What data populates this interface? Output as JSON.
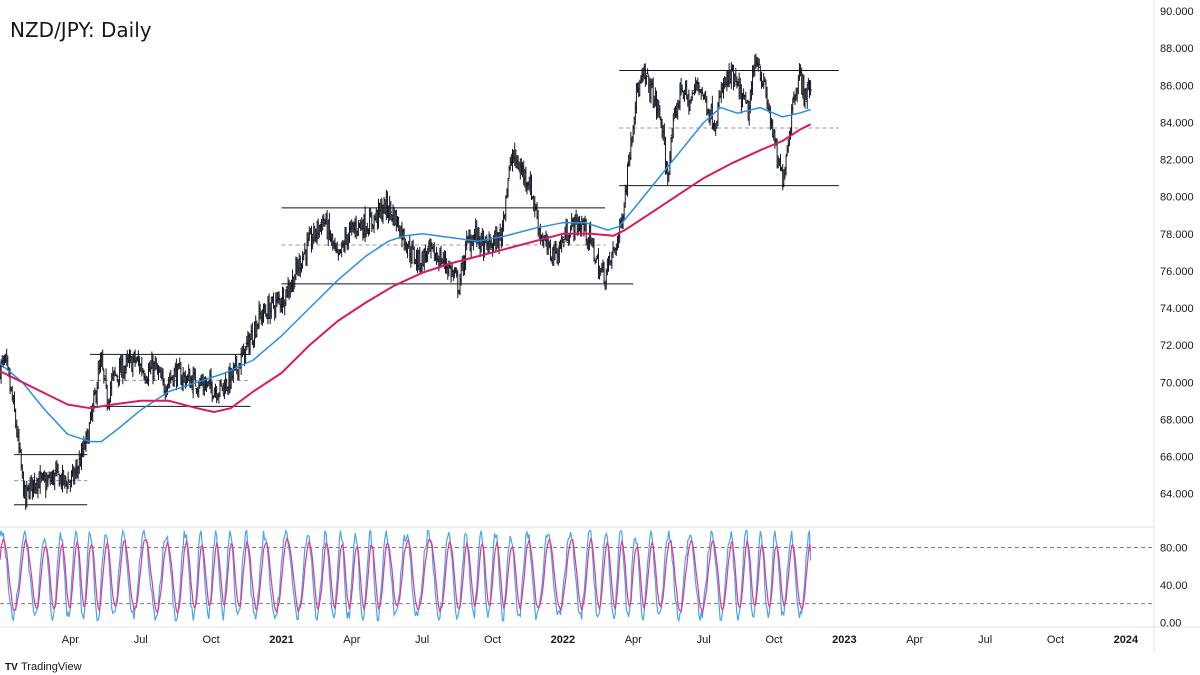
{
  "title": "NZD/JPY: Daily",
  "brand": {
    "name": "TradingView",
    "logo": "TV"
  },
  "chart_data": {
    "type": "candlestick",
    "instrument": "NZD/JPY",
    "timeframe": "Daily",
    "price_axis": {
      "ticks": [
        "90.000",
        "88.000",
        "86.000",
        "84.000",
        "82.000",
        "80.000",
        "78.000",
        "76.000",
        "74.000",
        "72.000",
        "70.000",
        "68.000",
        "66.000",
        "64.000"
      ],
      "range": [
        62.2,
        90.6
      ]
    },
    "time_axis": {
      "ticks": [
        {
          "label": "Apr",
          "t": 2020.25,
          "bold": false
        },
        {
          "label": "Jul",
          "t": 2020.5,
          "bold": false
        },
        {
          "label": "Oct",
          "t": 2020.75,
          "bold": false
        },
        {
          "label": "2021",
          "t": 2021.0,
          "bold": true
        },
        {
          "label": "Apr",
          "t": 2021.25,
          "bold": false
        },
        {
          "label": "Jul",
          "t": 2021.5,
          "bold": false
        },
        {
          "label": "Oct",
          "t": 2021.75,
          "bold": false
        },
        {
          "label": "2022",
          "t": 2022.0,
          "bold": true
        },
        {
          "label": "Apr",
          "t": 2022.25,
          "bold": false
        },
        {
          "label": "Jul",
          "t": 2022.5,
          "bold": false
        },
        {
          "label": "Oct",
          "t": 2022.75,
          "bold": false
        },
        {
          "label": "2023",
          "t": 2023.0,
          "bold": true
        },
        {
          "label": "Apr",
          "t": 2023.25,
          "bold": false
        },
        {
          "label": "Jul",
          "t": 2023.5,
          "bold": false
        },
        {
          "label": "Oct",
          "t": 2023.75,
          "bold": false
        },
        {
          "label": "2024",
          "t": 2024.0,
          "bold": true
        }
      ],
      "range": [
        2020.0,
        2024.1
      ]
    },
    "price_path": [
      [
        2020.0,
        70.8
      ],
      [
        2020.02,
        71.0
      ],
      [
        2020.05,
        68.5
      ],
      [
        2020.07,
        66.0
      ],
      [
        2020.09,
        63.5
      ],
      [
        2020.1,
        64.2
      ],
      [
        2020.13,
        64.8
      ],
      [
        2020.16,
        64.5
      ],
      [
        2020.2,
        65.0
      ],
      [
        2020.23,
        64.6
      ],
      [
        2020.26,
        64.8
      ],
      [
        2020.29,
        66.0
      ],
      [
        2020.31,
        67.0
      ],
      [
        2020.33,
        68.5
      ],
      [
        2020.35,
        70.5
      ],
      [
        2020.36,
        71.0
      ],
      [
        2020.38,
        69.0
      ],
      [
        2020.4,
        70.2
      ],
      [
        2020.44,
        70.8
      ],
      [
        2020.48,
        71.2
      ],
      [
        2020.52,
        70.5
      ],
      [
        2020.55,
        70.8
      ],
      [
        2020.58,
        69.8
      ],
      [
        2020.62,
        70.5
      ],
      [
        2020.66,
        70.2
      ],
      [
        2020.7,
        70.0
      ],
      [
        2020.74,
        69.8
      ],
      [
        2020.78,
        69.6
      ],
      [
        2020.82,
        70.2
      ],
      [
        2020.86,
        71.3
      ],
      [
        2020.88,
        72.0
      ],
      [
        2020.92,
        73.5
      ],
      [
        2020.96,
        74.0
      ],
      [
        2021.0,
        74.5
      ],
      [
        2021.04,
        75.5
      ],
      [
        2021.08,
        77.0
      ],
      [
        2021.12,
        78.0
      ],
      [
        2021.15,
        78.8
      ],
      [
        2021.18,
        77.5
      ],
      [
        2021.2,
        76.5
      ],
      [
        2021.23,
        77.8
      ],
      [
        2021.27,
        78.5
      ],
      [
        2021.31,
        78.5
      ],
      [
        2021.34,
        79.0
      ],
      [
        2021.37,
        79.5
      ],
      [
        2021.4,
        79.0
      ],
      [
        2021.43,
        78.0
      ],
      [
        2021.46,
        77.0
      ],
      [
        2021.49,
        76.5
      ],
      [
        2021.52,
        77.0
      ],
      [
        2021.55,
        76.8
      ],
      [
        2021.58,
        76.5
      ],
      [
        2021.61,
        75.8
      ],
      [
        2021.63,
        75.2
      ],
      [
        2021.66,
        77.5
      ],
      [
        2021.69,
        78.0
      ],
      [
        2021.72,
        77.2
      ],
      [
        2021.75,
        77.5
      ],
      [
        2021.78,
        77.8
      ],
      [
        2021.8,
        80.5
      ],
      [
        2021.82,
        82.2
      ],
      [
        2021.85,
        81.5
      ],
      [
        2021.88,
        80.8
      ],
      [
        2021.9,
        79.5
      ],
      [
        2021.92,
        78.0
      ],
      [
        2021.95,
        77.0
      ],
      [
        2021.98,
        77.0
      ],
      [
        2022.01,
        78.0
      ],
      [
        2022.04,
        78.5
      ],
      [
        2022.07,
        78.5
      ],
      [
        2022.1,
        77.5
      ],
      [
        2022.13,
        76.0
      ],
      [
        2022.15,
        75.8
      ],
      [
        2022.18,
        77.0
      ],
      [
        2022.2,
        78.0
      ],
      [
        2022.22,
        80.0
      ],
      [
        2022.24,
        83.0
      ],
      [
        2022.26,
        85.5
      ],
      [
        2022.29,
        86.5
      ],
      [
        2022.32,
        85.5
      ],
      [
        2022.35,
        84.0
      ],
      [
        2022.37,
        81.0
      ],
      [
        2022.39,
        83.5
      ],
      [
        2022.42,
        86.0
      ],
      [
        2022.45,
        85.0
      ],
      [
        2022.48,
        86.2
      ],
      [
        2022.51,
        85.0
      ],
      [
        2022.54,
        84.0
      ],
      [
        2022.57,
        86.0
      ],
      [
        2022.6,
        86.5
      ],
      [
        2022.63,
        85.5
      ],
      [
        2022.66,
        84.5
      ],
      [
        2022.68,
        87.0
      ],
      [
        2022.69,
        87.6
      ],
      [
        2022.72,
        85.5
      ],
      [
        2022.74,
        84.0
      ],
      [
        2022.76,
        82.0
      ],
      [
        2022.78,
        81.0
      ],
      [
        2022.8,
        83.0
      ],
      [
        2022.82,
        85.5
      ],
      [
        2022.84,
        86.5
      ],
      [
        2022.86,
        85.5
      ],
      [
        2022.88,
        86.0
      ]
    ],
    "moving_averages": [
      {
        "color": "#2a8ee6",
        "points": [
          [
            2020.0,
            71.0
          ],
          [
            2020.08,
            70.0
          ],
          [
            2020.16,
            68.5
          ],
          [
            2020.24,
            67.2
          ],
          [
            2020.32,
            66.8
          ],
          [
            2020.36,
            66.8
          ],
          [
            2020.42,
            67.5
          ],
          [
            2020.5,
            68.5
          ],
          [
            2020.6,
            69.5
          ],
          [
            2020.7,
            70.0
          ],
          [
            2020.8,
            70.5
          ],
          [
            2020.9,
            71.2
          ],
          [
            2021.0,
            72.5
          ],
          [
            2021.1,
            74.0
          ],
          [
            2021.2,
            75.5
          ],
          [
            2021.3,
            76.8
          ],
          [
            2021.38,
            77.6
          ],
          [
            2021.44,
            77.9
          ],
          [
            2021.5,
            78.0
          ],
          [
            2021.6,
            77.8
          ],
          [
            2021.7,
            77.6
          ],
          [
            2021.8,
            77.9
          ],
          [
            2021.9,
            78.3
          ],
          [
            2022.0,
            78.6
          ],
          [
            2022.08,
            78.6
          ],
          [
            2022.16,
            78.2
          ],
          [
            2022.2,
            78.4
          ],
          [
            2022.26,
            79.5
          ],
          [
            2022.34,
            81.0
          ],
          [
            2022.42,
            82.5
          ],
          [
            2022.5,
            84.0
          ],
          [
            2022.56,
            84.8
          ],
          [
            2022.62,
            84.5
          ],
          [
            2022.7,
            84.8
          ],
          [
            2022.78,
            84.3
          ],
          [
            2022.84,
            84.5
          ],
          [
            2022.88,
            84.7
          ]
        ]
      },
      {
        "color": "#d81b60",
        "points": [
          [
            2020.0,
            70.6
          ],
          [
            2020.08,
            70.0
          ],
          [
            2020.16,
            69.4
          ],
          [
            2020.24,
            68.8
          ],
          [
            2020.32,
            68.6
          ],
          [
            2020.4,
            68.8
          ],
          [
            2020.5,
            69.0
          ],
          [
            2020.6,
            69.0
          ],
          [
            2020.7,
            68.6
          ],
          [
            2020.76,
            68.4
          ],
          [
            2020.82,
            68.6
          ],
          [
            2020.9,
            69.5
          ],
          [
            2021.0,
            70.5
          ],
          [
            2021.1,
            72.0
          ],
          [
            2021.2,
            73.3
          ],
          [
            2021.3,
            74.3
          ],
          [
            2021.4,
            75.2
          ],
          [
            2021.5,
            75.9
          ],
          [
            2021.6,
            76.4
          ],
          [
            2021.7,
            76.8
          ],
          [
            2021.8,
            77.2
          ],
          [
            2021.9,
            77.6
          ],
          [
            2022.0,
            78.0
          ],
          [
            2022.1,
            78.0
          ],
          [
            2022.18,
            77.9
          ],
          [
            2022.22,
            78.2
          ],
          [
            2022.3,
            79.0
          ],
          [
            2022.4,
            80.0
          ],
          [
            2022.5,
            81.0
          ],
          [
            2022.6,
            81.8
          ],
          [
            2022.7,
            82.5
          ],
          [
            2022.78,
            83.0
          ],
          [
            2022.84,
            83.6
          ],
          [
            2022.88,
            83.9
          ]
        ]
      }
    ],
    "levels": [
      {
        "price": 66.1,
        "t0": 2020.05,
        "t1": 2020.31,
        "style": "solid"
      },
      {
        "price": 64.7,
        "t0": 2020.05,
        "t1": 2020.31,
        "style": "dashed"
      },
      {
        "price": 63.4,
        "t0": 2020.05,
        "t1": 2020.31,
        "style": "solid"
      },
      {
        "price": 71.5,
        "t0": 2020.32,
        "t1": 2020.89,
        "style": "solid"
      },
      {
        "price": 70.1,
        "t0": 2020.32,
        "t1": 2020.89,
        "style": "dashed"
      },
      {
        "price": 68.7,
        "t0": 2020.32,
        "t1": 2020.89,
        "style": "solid"
      },
      {
        "price": 79.4,
        "t0": 2021.0,
        "t1": 2022.15,
        "style": "solid"
      },
      {
        "price": 77.4,
        "t0": 2021.0,
        "t1": 2022.15,
        "style": "dashed"
      },
      {
        "price": 75.3,
        "t0": 2021.0,
        "t1": 2022.25,
        "style": "solid"
      },
      {
        "price": 86.8,
        "t0": 2022.2,
        "t1": 2022.98,
        "style": "solid"
      },
      {
        "price": 83.7,
        "t0": 2022.2,
        "t1": 2022.98,
        "style": "dashed"
      },
      {
        "price": 80.6,
        "t0": 2022.2,
        "t1": 2022.98,
        "style": "solid"
      }
    ],
    "oscillator": {
      "ticks": [
        "80.00",
        "40.00",
        "0.00"
      ],
      "levels": [
        80,
        20
      ],
      "range": [
        -5,
        102
      ],
      "k_color": "#4aa3f0",
      "d_color": "#e0388a",
      "last_value": 66
    }
  }
}
